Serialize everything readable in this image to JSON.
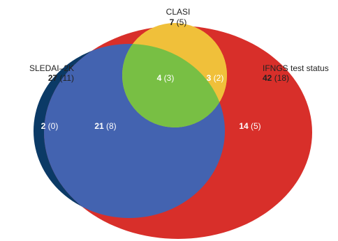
{
  "sets": {
    "sledai": {
      "name": "SLEDAI–2K",
      "count": "27",
      "paren": "(11)",
      "color": "#0b3a66"
    },
    "clasi": {
      "name": "CLASI",
      "count": "7",
      "paren": "(5)",
      "color": "#f0c03a"
    },
    "ifngs": {
      "name": "IFNGS test status",
      "count": "42",
      "paren": "(18)",
      "color": "#d82f2a"
    }
  },
  "regions": {
    "sledai_only": {
      "count": "2",
      "paren": "(0)"
    },
    "sledai_ifngs": {
      "count": "21",
      "paren": "(8)",
      "color": "#4363b0"
    },
    "all_three": {
      "count": "4",
      "paren": "(3)",
      "color": "#78bf44"
    },
    "clasi_ifngs": {
      "count": "3",
      "paren": "(2)"
    },
    "ifngs_only": {
      "count": "14",
      "paren": "(5)"
    }
  }
}
